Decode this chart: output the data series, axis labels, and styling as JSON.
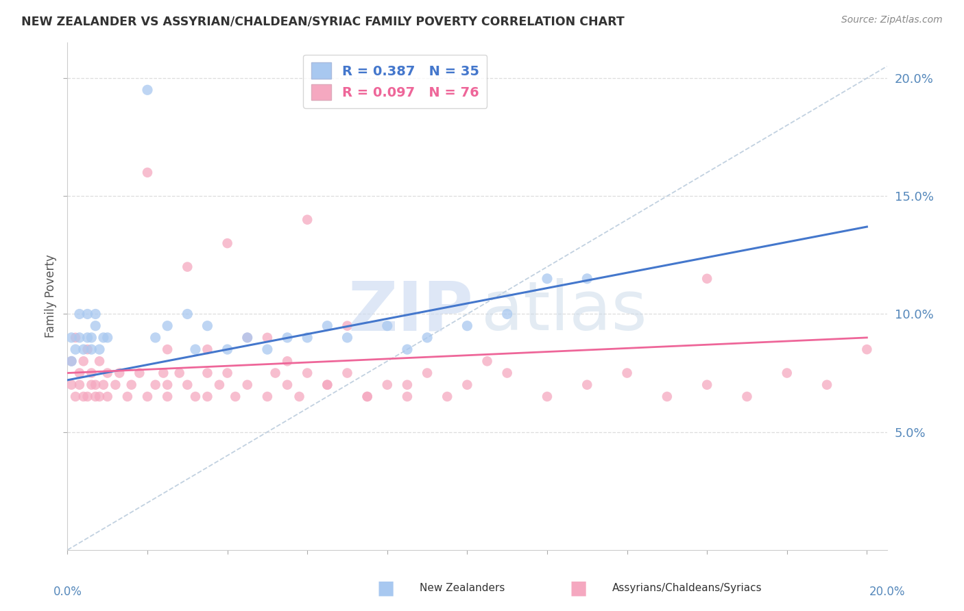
{
  "title": "NEW ZEALANDER VS ASSYRIAN/CHALDEAN/SYRIAC FAMILY POVERTY CORRELATION CHART",
  "source": "Source: ZipAtlas.com",
  "ylabel": "Family Poverty",
  "legend1_label": "R = 0.387   N = 35",
  "legend2_label": "R = 0.097   N = 76",
  "series1_color": "#A8C8F0",
  "series2_color": "#F5A8C0",
  "line1_color": "#4477CC",
  "line2_color": "#EE6699",
  "diag_color": "#BBCCDD",
  "watermark_zip_color": "#C8D8F0",
  "watermark_atlas_color": "#C8D8E8",
  "background_color": "#FFFFFF",
  "grid_color": "#DDDDDD",
  "ytick_color": "#5588BB",
  "ylabel_color": "#555555",
  "title_color": "#333333",
  "source_color": "#888888",
  "bottom_label_color": "#555555",
  "xlim": [
    0.0,
    0.205
  ],
  "ylim": [
    0.0,
    0.215
  ],
  "nz_x": [
    0.001,
    0.001,
    0.002,
    0.003,
    0.003,
    0.004,
    0.005,
    0.005,
    0.006,
    0.006,
    0.007,
    0.007,
    0.008,
    0.009,
    0.01,
    0.02,
    0.022,
    0.025,
    0.03,
    0.032,
    0.035,
    0.04,
    0.045,
    0.05,
    0.055,
    0.06,
    0.065,
    0.07,
    0.08,
    0.085,
    0.09,
    0.1,
    0.11,
    0.12,
    0.13
  ],
  "nz_y": [
    0.08,
    0.09,
    0.085,
    0.09,
    0.1,
    0.085,
    0.09,
    0.1,
    0.085,
    0.09,
    0.1,
    0.095,
    0.085,
    0.09,
    0.09,
    0.195,
    0.09,
    0.095,
    0.1,
    0.085,
    0.095,
    0.085,
    0.09,
    0.085,
    0.09,
    0.09,
    0.095,
    0.09,
    0.095,
    0.085,
    0.09,
    0.095,
    0.1,
    0.115,
    0.115
  ],
  "as_x": [
    0.001,
    0.001,
    0.002,
    0.002,
    0.003,
    0.003,
    0.004,
    0.004,
    0.005,
    0.005,
    0.006,
    0.006,
    0.007,
    0.007,
    0.008,
    0.008,
    0.009,
    0.01,
    0.01,
    0.012,
    0.013,
    0.015,
    0.016,
    0.018,
    0.02,
    0.022,
    0.024,
    0.025,
    0.025,
    0.028,
    0.03,
    0.032,
    0.035,
    0.035,
    0.038,
    0.04,
    0.042,
    0.045,
    0.05,
    0.052,
    0.055,
    0.058,
    0.06,
    0.065,
    0.07,
    0.075,
    0.08,
    0.085,
    0.09,
    0.1,
    0.11,
    0.12,
    0.13,
    0.14,
    0.15,
    0.16,
    0.17,
    0.18,
    0.19,
    0.2,
    0.02,
    0.03,
    0.04,
    0.05,
    0.06,
    0.07,
    0.025,
    0.035,
    0.045,
    0.055,
    0.065,
    0.075,
    0.085,
    0.095,
    0.105,
    0.16
  ],
  "as_y": [
    0.07,
    0.08,
    0.065,
    0.09,
    0.07,
    0.075,
    0.065,
    0.08,
    0.065,
    0.085,
    0.07,
    0.075,
    0.065,
    0.07,
    0.08,
    0.065,
    0.07,
    0.075,
    0.065,
    0.07,
    0.075,
    0.065,
    0.07,
    0.075,
    0.065,
    0.07,
    0.075,
    0.065,
    0.07,
    0.075,
    0.07,
    0.065,
    0.075,
    0.065,
    0.07,
    0.075,
    0.065,
    0.07,
    0.065,
    0.075,
    0.07,
    0.065,
    0.075,
    0.07,
    0.075,
    0.065,
    0.07,
    0.065,
    0.075,
    0.07,
    0.075,
    0.065,
    0.07,
    0.075,
    0.065,
    0.07,
    0.065,
    0.075,
    0.07,
    0.085,
    0.16,
    0.12,
    0.13,
    0.09,
    0.14,
    0.095,
    0.085,
    0.085,
    0.09,
    0.08,
    0.07,
    0.065,
    0.07,
    0.065,
    0.08,
    0.115
  ],
  "nz_line_x0": 0.0,
  "nz_line_x1": 0.2,
  "nz_line_y0": 0.072,
  "nz_line_y1": 0.137,
  "as_line_x0": 0.0,
  "as_line_x1": 0.2,
  "as_line_y0": 0.075,
  "as_line_y1": 0.09
}
